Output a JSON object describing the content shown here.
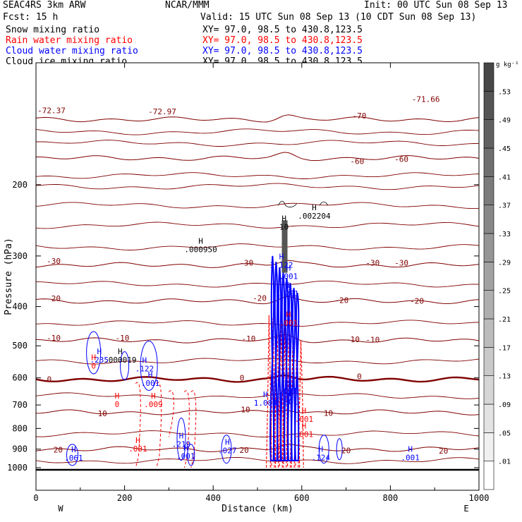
{
  "header": {
    "experiment": "SEAC4RS   3km ARW",
    "center": "NCAR/MMM",
    "init": "Init: 00 UTC Sun 08 Sep 13",
    "fcst": "Fcst:   15 h",
    "valid": "Valid: 15 UTC Sun 08 Sep 13 (10 CDT Sun 08 Sep 13)"
  },
  "fields": [
    {
      "name": "Snow mixing ratio",
      "xy": "XY=   97.0, 98.5 to 430.8,123.5",
      "color": "#000000"
    },
    {
      "name": "Rain water mixing ratio",
      "xy": "XY=  97.0, 98.5 to 430.8,123.5",
      "color": "#ff0000"
    },
    {
      "name": "Cloud water mixing ratio",
      "xy": "XY=  97.0, 98.5 to 430.8,123.5",
      "color": "#0000ff"
    },
    {
      "name": "Cloud ice mixing ratio",
      "xy": "XY=  97.0, 98.5 to 430.8,123.5",
      "color": "#000000"
    }
  ],
  "chart_data": {
    "type": "cross-section contour",
    "xlabel": "Distance (km)",
    "ylabel": "Pressure (hPa)",
    "xlim": [
      0,
      1000
    ],
    "ylim": [
      1000,
      100
    ],
    "y_scale": "log",
    "x_ticks": [
      "0",
      "200",
      "400",
      "600",
      "800",
      "1000"
    ],
    "y_ticks": [
      "200",
      "300",
      "400",
      "500",
      "600",
      "700",
      "800",
      "900",
      "1000"
    ],
    "x_tick_values": [
      0,
      200,
      400,
      600,
      800,
      1000
    ],
    "y_tick_values": [
      200,
      300,
      400,
      500,
      600,
      700,
      800,
      900,
      1000
    ],
    "side_labels": {
      "left": "W",
      "right": "E"
    },
    "surface_pressure": 1012,
    "temperature_contours": {
      "color": "#800000",
      "freezing_level_color": "#800000",
      "levels": [
        {
          "value": 20,
          "p": 900
        },
        {
          "value": 10,
          "p": 730
        },
        {
          "value": 0,
          "p": 605
        },
        {
          "value": -10,
          "p": 485
        },
        {
          "value": -20,
          "p": 388
        },
        {
          "value": -30,
          "p": 316
        },
        {
          "value": -60,
          "p": 172
        },
        {
          "value": -70,
          "p": 138
        }
      ],
      "labels": [
        {
          "text": "20",
          "x": 50,
          "p": 902
        },
        {
          "text": "20",
          "x": 470,
          "p": 905
        },
        {
          "text": "20",
          "x": 700,
          "p": 907
        },
        {
          "text": "20",
          "x": 920,
          "p": 909
        },
        {
          "text": "10",
          "x": 150,
          "p": 735
        },
        {
          "text": "10",
          "x": 473,
          "p": 718
        },
        {
          "text": "10",
          "x": 660,
          "p": 733
        },
        {
          "text": "0",
          "x": 30,
          "p": 604
        },
        {
          "text": "0",
          "x": 465,
          "p": 600
        },
        {
          "text": "0",
          "x": 730,
          "p": 595
        },
        {
          "text": "-10",
          "x": 40,
          "p": 478
        },
        {
          "text": "-10",
          "x": 195,
          "p": 478
        },
        {
          "text": "-10",
          "x": 480,
          "p": 480
        },
        {
          "text": "-10",
          "x": 715,
          "p": 482
        },
        {
          "text": "-10",
          "x": 760,
          "p": 483
        },
        {
          "text": "-20",
          "x": 40,
          "p": 382
        },
        {
          "text": "-20",
          "x": 505,
          "p": 381
        },
        {
          "text": "-20",
          "x": 690,
          "p": 386
        },
        {
          "text": "-20",
          "x": 860,
          "p": 387
        },
        {
          "text": "-30",
          "x": 40,
          "p": 309
        },
        {
          "text": "-30",
          "x": 475,
          "p": 312
        },
        {
          "text": "-30",
          "x": 760,
          "p": 312
        },
        {
          "text": "-30",
          "x": 825,
          "p": 312
        },
        {
          "text": "-60",
          "x": 725,
          "p": 175
        },
        {
          "text": "-60",
          "x": 825,
          "p": 173
        },
        {
          "text": "-70",
          "x": 730,
          "p": 135
        },
        {
          "text": "-72.37",
          "x": 35,
          "p": 131
        },
        {
          "text": "-72.97",
          "x": 285,
          "p": 132
        },
        {
          "text": "-71.66",
          "x": 880,
          "p": 123
        }
      ]
    },
    "cloud_water": {
      "color": "#0000ff",
      "max_labels": [
        {
          "text": ".235",
          "x": 143,
          "p": 543
        },
        {
          "text": ".122",
          "x": 245,
          "p": 571
        },
        {
          "text": ".001",
          "x": 258,
          "p": 620
        },
        {
          "text": "1.084",
          "x": 518,
          "p": 694
        },
        {
          "text": ".219",
          "x": 328,
          "p": 878
        },
        {
          "text": ".001",
          "x": 338,
          "p": 940
        },
        {
          "text": ".027",
          "x": 432,
          "p": 910
        },
        {
          "text": ".061",
          "x": 85,
          "p": 950
        },
        {
          "text": ".124",
          "x": 643,
          "p": 947
        },
        {
          "text": ".001",
          "x": 845,
          "p": 947
        },
        {
          "text": "1.122",
          "x": 554,
          "p": 317
        },
        {
          "text": "1.201",
          "x": 567,
          "p": 373
        },
        {
          "text": ".001",
          "x": 570,
          "p": 338
        },
        {
          "text": ".001",
          "x": 569,
          "p": 648
        },
        {
          "text": ".001",
          "x": 570,
          "p": 690
        }
      ]
    },
    "rain_water": {
      "color": "#ff0000",
      "max_labels": [
        {
          "text": "0",
          "x": 130,
          "p": 562
        },
        {
          "text": "0",
          "x": 183,
          "p": 700
        },
        {
          "text": ".009",
          "x": 265,
          "p": 700
        },
        {
          "text": ".001",
          "x": 230,
          "p": 901
        },
        {
          "text": ".001",
          "x": 570,
          "p": 440
        },
        {
          "text": ".001",
          "x": 605,
          "p": 762
        },
        {
          "text": ".001",
          "x": 605,
          "p": 830
        }
      ]
    },
    "snow": {
      "color": "#000000",
      "max_labels": [
        {
          "text": ".000950",
          "x": 372,
          "p": 290
        },
        {
          "text": ".002204",
          "x": 628,
          "p": 240
        },
        {
          "text": "10",
          "x": 560,
          "p": 255
        }
      ]
    },
    "cloud_ice": {
      "color": "#000000",
      "max_labels": [
        {
          "text": ".000019",
          "x": 190,
          "p": 543
        }
      ]
    },
    "colorbar": {
      "unit": "g kg⁻¹",
      "levels": [
        ".01",
        ".05",
        ".09",
        ".13",
        ".17",
        ".21",
        ".25",
        ".29",
        ".33",
        ".37",
        ".41",
        ".45",
        ".49",
        ".53"
      ],
      "colors": [
        "#ffffff",
        "#f0f0f0",
        "#e3e3e3",
        "#d6d6d6",
        "#c9c9c9",
        "#bcbcbc",
        "#afafaf",
        "#a2a2a2",
        "#959595",
        "#888888",
        "#7b7b7b",
        "#6e6e6e",
        "#616161",
        "#545454",
        "#474747"
      ]
    }
  }
}
